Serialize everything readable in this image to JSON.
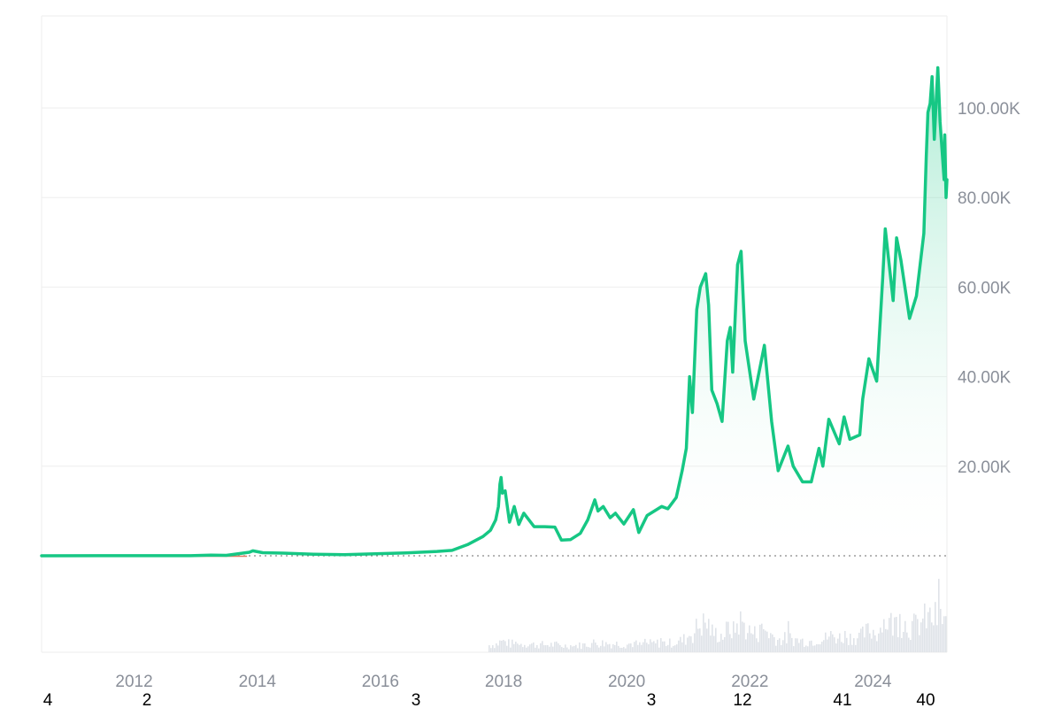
{
  "chart_data": {
    "type": "area",
    "title": "",
    "xlabel": "",
    "ylabel": "",
    "x_ticks": [
      "2012",
      "2014",
      "2016",
      "2018",
      "2020",
      "2022",
      "2024"
    ],
    "y_ticks": [
      "20.00K",
      "40.00K",
      "60.00K",
      "80.00K",
      "100.00K"
    ],
    "ylim": [
      0,
      120000
    ],
    "xlim": [
      "2010-07-01",
      "2025-03-15"
    ],
    "grid": true,
    "baseline_value": 0,
    "footer_numbers": [
      "4",
      "2",
      "3",
      "3",
      "12",
      "41",
      "40"
    ],
    "colors": {
      "line": "#16c784",
      "area_top": "#16c784",
      "area_bottom": "#ffffff",
      "grid": "#eeeeee",
      "volume": "#dfe3e8",
      "early_line": "#e0785f"
    },
    "series": [
      {
        "values": [
          [
            "2010-07-01",
            0
          ],
          [
            "2011-06-01",
            20
          ],
          [
            "2012-01-01",
            10
          ],
          [
            "2012-12-01",
            13
          ],
          [
            "2013-04-01",
            150
          ],
          [
            "2013-07-01",
            90
          ],
          [
            "2013-11-15",
            800
          ],
          [
            "2013-12-05",
            1100
          ],
          [
            "2014-02-01",
            700
          ],
          [
            "2014-06-01",
            600
          ],
          [
            "2014-12-01",
            350
          ],
          [
            "2015-06-01",
            230
          ],
          [
            "2015-12-01",
            430
          ],
          [
            "2016-06-01",
            650
          ],
          [
            "2016-12-01",
            960
          ],
          [
            "2017-03-01",
            1200
          ],
          [
            "2017-06-01",
            2500
          ],
          [
            "2017-09-01",
            4300
          ],
          [
            "2017-10-15",
            5700
          ],
          [
            "2017-11-15",
            8000
          ],
          [
            "2017-12-01",
            11000
          ],
          [
            "2017-12-10",
            16000
          ],
          [
            "2017-12-17",
            17500
          ],
          [
            "2017-12-25",
            14000
          ],
          [
            "2018-01-10",
            14500
          ],
          [
            "2018-02-05",
            7500
          ],
          [
            "2018-03-05",
            11000
          ],
          [
            "2018-04-01",
            7000
          ],
          [
            "2018-05-01",
            9500
          ],
          [
            "2018-07-01",
            6500
          ],
          [
            "2018-09-01",
            6500
          ],
          [
            "2018-11-01",
            6400
          ],
          [
            "2018-12-10",
            3500
          ],
          [
            "2019-02-01",
            3600
          ],
          [
            "2019-04-01",
            5000
          ],
          [
            "2019-05-15",
            8000
          ],
          [
            "2019-06-26",
            12500
          ],
          [
            "2019-07-15",
            10000
          ],
          [
            "2019-08-15",
            11000
          ],
          [
            "2019-09-25",
            8500
          ],
          [
            "2019-10-26",
            9500
          ],
          [
            "2019-12-15",
            7100
          ],
          [
            "2020-02-10",
            10300
          ],
          [
            "2020-03-13",
            5200
          ],
          [
            "2020-05-01",
            9000
          ],
          [
            "2020-07-27",
            11000
          ],
          [
            "2020-09-01",
            10500
          ],
          [
            "2020-10-21",
            13000
          ],
          [
            "2020-11-25",
            19000
          ],
          [
            "2020-12-20",
            24000
          ],
          [
            "2021-01-08",
            40000
          ],
          [
            "2021-01-25",
            32000
          ],
          [
            "2021-02-20",
            55000
          ],
          [
            "2021-03-13",
            60000
          ],
          [
            "2021-04-14",
            63000
          ],
          [
            "2021-05-01",
            56000
          ],
          [
            "2021-05-20",
            37000
          ],
          [
            "2021-06-20",
            34000
          ],
          [
            "2021-07-20",
            30000
          ],
          [
            "2021-08-20",
            48000
          ],
          [
            "2021-09-07",
            51000
          ],
          [
            "2021-09-21",
            41000
          ],
          [
            "2021-10-20",
            65000
          ],
          [
            "2021-11-10",
            68000
          ],
          [
            "2021-12-04",
            48000
          ],
          [
            "2022-01-24",
            35000
          ],
          [
            "2022-03-28",
            47000
          ],
          [
            "2022-05-10",
            30000
          ],
          [
            "2022-06-18",
            19000
          ],
          [
            "2022-08-15",
            24500
          ],
          [
            "2022-09-15",
            20000
          ],
          [
            "2022-11-09",
            16500
          ],
          [
            "2022-12-31",
            16500
          ],
          [
            "2023-02-15",
            24000
          ],
          [
            "2023-03-10",
            20000
          ],
          [
            "2023-04-14",
            30500
          ],
          [
            "2023-06-15",
            25000
          ],
          [
            "2023-07-14",
            31000
          ],
          [
            "2023-08-17",
            26000
          ],
          [
            "2023-10-15",
            27000
          ],
          [
            "2023-11-01",
            35000
          ],
          [
            "2023-12-08",
            44000
          ],
          [
            "2024-01-23",
            39000
          ],
          [
            "2024-02-28",
            62000
          ],
          [
            "2024-03-14",
            73000
          ],
          [
            "2024-04-30",
            57000
          ],
          [
            "2024-05-20",
            71000
          ],
          [
            "2024-06-15",
            66000
          ],
          [
            "2024-08-05",
            53000
          ],
          [
            "2024-09-15",
            58000
          ],
          [
            "2024-10-29",
            72000
          ],
          [
            "2024-11-12",
            89000
          ],
          [
            "2024-11-22",
            99000
          ],
          [
            "2024-12-05",
            101000
          ],
          [
            "2024-12-17",
            107000
          ],
          [
            "2024-12-30",
            93000
          ],
          [
            "2025-01-20",
            109000
          ],
          [
            "2025-02-02",
            97000
          ],
          [
            "2025-02-26",
            84000
          ],
          [
            "2025-03-02",
            94000
          ],
          [
            "2025-03-10",
            80000
          ],
          [
            "2025-03-15",
            84000
          ]
        ]
      }
    ]
  }
}
